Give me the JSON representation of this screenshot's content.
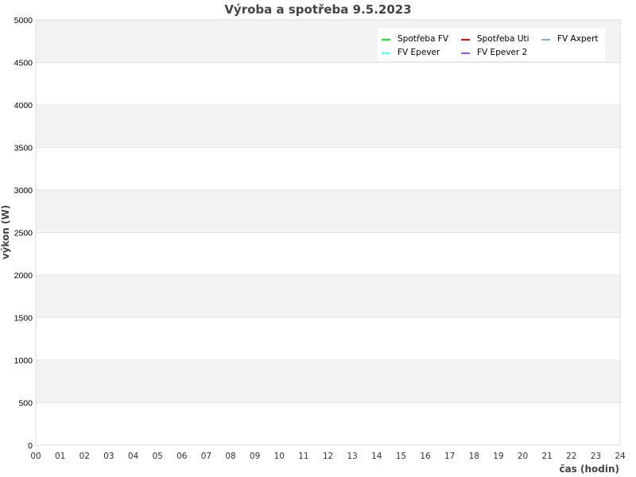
{
  "chart_data": {
    "type": "line",
    "title": "Výroba a spotřeba 9.5.2023",
    "xlabel": "čas (hodin)",
    "ylabel": "výkon (W)",
    "xlim": [
      0,
      24
    ],
    "ylim": [
      0,
      5000
    ],
    "x_ticks": [
      "00",
      "01",
      "02",
      "03",
      "04",
      "05",
      "06",
      "07",
      "08",
      "09",
      "10",
      "11",
      "12",
      "13",
      "14",
      "15",
      "16",
      "17",
      "18",
      "19",
      "20",
      "21",
      "22",
      "23",
      "24"
    ],
    "y_ticks": [
      0,
      500,
      1000,
      1500,
      2000,
      2500,
      3000,
      3500,
      4000,
      4500,
      5000
    ],
    "grid": true,
    "legend_position": "top-right",
    "series": [
      {
        "name": "Spotřeba FV",
        "color": "#00ff00",
        "values": []
      },
      {
        "name": "Spotřeba Uti",
        "color": "#ff0000",
        "values": []
      },
      {
        "name": "FV Axpert",
        "color": "#88aadd",
        "values": []
      },
      {
        "name": "FV Epever",
        "color": "#55ffee",
        "values": []
      },
      {
        "name": "FV Epever 2",
        "color": "#9955ee",
        "values": []
      }
    ]
  }
}
